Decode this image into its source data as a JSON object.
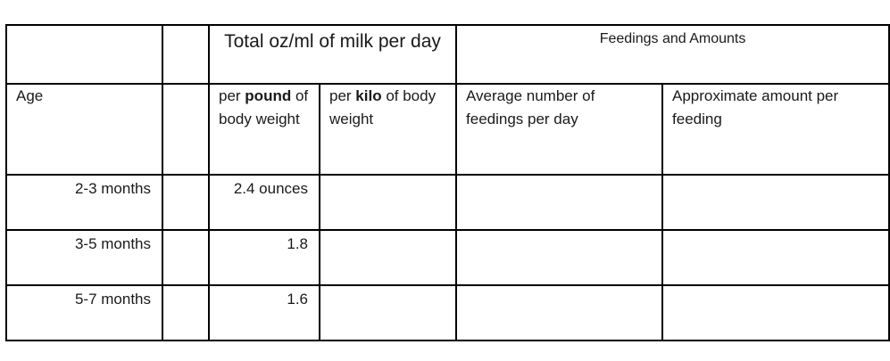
{
  "header": {
    "total_title": "Total oz/ml of milk per day",
    "feedings_title": "Feedings and Amounts"
  },
  "subheader": {
    "age": "Age",
    "per_pound_prefix": "per ",
    "per_pound_bold": "pound",
    "per_pound_suffix": " of body weight",
    "per_kilo_prefix": "per ",
    "per_kilo_bold": "kilo",
    "per_kilo_suffix": " of body weight",
    "avg_feedings": "Average number of feedings per day",
    "approx_amount": "Approximate amount per feeding"
  },
  "rows": [
    {
      "age": "2-3 months",
      "per_pound": "2.4 ounces",
      "per_kilo": "",
      "avg_feedings": "",
      "approx_amount": ""
    },
    {
      "age": "3-5 months",
      "per_pound": "1.8",
      "per_kilo": "",
      "avg_feedings": "",
      "approx_amount": ""
    },
    {
      "age": "5-7 months",
      "per_pound": "1.6",
      "per_kilo": "",
      "avg_feedings": "",
      "approx_amount": ""
    }
  ]
}
